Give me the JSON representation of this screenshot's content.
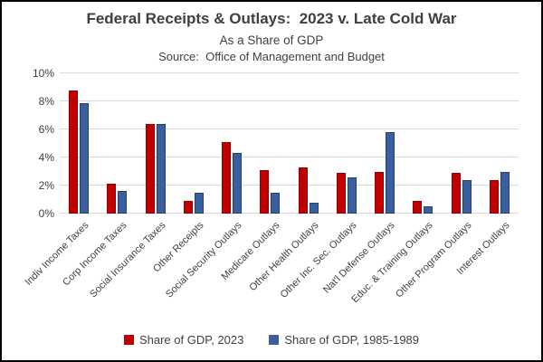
{
  "window": {
    "background": "#FFFFFF",
    "border_color": "#000000"
  },
  "header": {
    "title": "Federal Receipts & Outlays:  2023 v. Late Cold War",
    "subtitle": "As a Share of GDP",
    "source": "Source:  Office of Management and Budget"
  },
  "chart_data": {
    "type": "bar",
    "title": "Federal Receipts & Outlays:  2023 v. Late Cold War",
    "subtitle": "As a Share of GDP",
    "source": "Source:  Office of Management and Budget",
    "categories": [
      "Indiv Income Taxes",
      "Corp Income Taxes",
      "Social Insurance Taxes",
      "Other Receipts",
      "Social Security Outlays",
      "Medicare Outlays",
      "Other Health Outlays",
      "Other Inc. Sec. Outlays",
      "Nat'l Defense Outlays",
      "Educ. & Training Outlays",
      "Other Program Outlays",
      "Interest Outlays"
    ],
    "series": [
      {
        "name": "Share of GDP, 2023",
        "color": "#C00000",
        "border_color": "#960000",
        "values": [
          8.8,
          2.1,
          6.4,
          0.9,
          5.1,
          3.1,
          3.3,
          2.9,
          3.0,
          0.9,
          2.9,
          2.4
        ]
      },
      {
        "name": "Share of GDP, 1985-1989",
        "color": "#3A5F9F",
        "border_color": "#27406B",
        "values": [
          7.9,
          1.6,
          6.4,
          1.5,
          4.3,
          1.5,
          0.8,
          2.6,
          5.8,
          0.5,
          2.4,
          3.0
        ]
      }
    ],
    "xlabel": "",
    "ylabel": "",
    "ylim": [
      0,
      10
    ],
    "ytick_values": [
      0,
      2,
      4,
      6,
      8,
      10
    ],
    "ytick_labels": [
      "0%",
      "2%",
      "4%",
      "6%",
      "8%",
      "10%"
    ],
    "grid": true,
    "gridline_color": "#D9D9D9",
    "legend_position": "bottom",
    "text_color": "#404040"
  }
}
